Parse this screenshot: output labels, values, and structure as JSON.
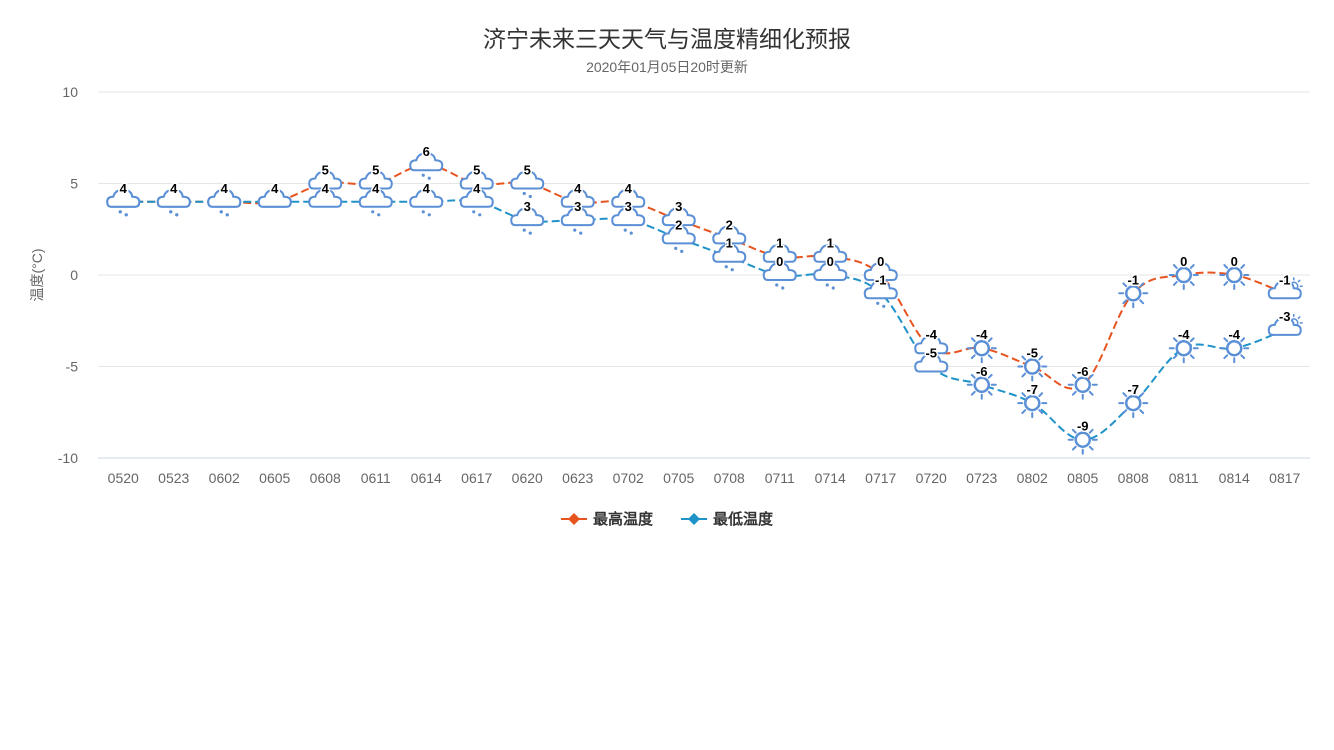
{
  "title": "济宁未来三天天气与温度精细化预报",
  "subtitle": "2020年01月05日20时更新",
  "chart_data": {
    "type": "line",
    "title": "济宁未来三天天气与温度精细化预报",
    "subtitle": "2020年01月05日20时更新",
    "ylabel": "温度(°C)",
    "xlabel": "",
    "ylim": [
      -10,
      10
    ],
    "yticks": [
      10,
      5,
      0,
      -5,
      -10
    ],
    "grid": true,
    "legend": "bottom-center",
    "categories": [
      "0520",
      "0523",
      "0602",
      "0605",
      "0608",
      "0611",
      "0614",
      "0617",
      "0620",
      "0623",
      "0702",
      "0705",
      "0708",
      "0711",
      "0714",
      "0717",
      "0720",
      "0723",
      "0802",
      "0805",
      "0808",
      "0811",
      "0814",
      "0817"
    ],
    "series": [
      {
        "name": "最高温度",
        "color": "#e8541f",
        "marker": "diamond",
        "values": [
          4,
          4,
          4,
          4,
          5,
          5,
          6,
          5,
          5,
          4,
          4,
          3,
          2,
          1,
          1,
          0,
          -4,
          -4,
          -5,
          -6,
          -1,
          0,
          0,
          -1
        ]
      },
      {
        "name": "最低温度",
        "color": "#1f93c8",
        "marker": "diamond",
        "values": [
          4,
          4,
          4,
          4,
          4,
          4,
          4,
          4,
          3,
          3,
          3,
          2,
          1,
          0,
          0,
          -1,
          -5,
          -6,
          -7,
          -9,
          -7,
          -4,
          -4,
          -3
        ]
      }
    ],
    "weather_icons": {
      "max": [
        "light-snow-icon",
        "light-snow-icon",
        "light-snow-icon",
        "cloudy-icon",
        "cloudy-icon",
        "light-snow-icon",
        "light-snow-icon",
        "light-snow-icon",
        "light-snow-icon",
        "light-snow-icon",
        "light-snow-icon",
        "light-snow-icon",
        "light-snow-icon",
        "light-snow-icon",
        "light-snow-icon",
        "light-snow-icon",
        "cloudy-icon",
        "sunny-icon",
        "sunny-icon",
        "sunny-icon",
        "sunny-icon",
        "sunny-icon",
        "sunny-icon",
        "partly-cloudy-icon"
      ],
      "min": [
        "light-snow-icon",
        "light-snow-icon",
        "light-snow-icon",
        "cloudy-icon",
        "cloudy-icon",
        "light-snow-icon",
        "light-snow-icon",
        "light-snow-icon",
        "light-snow-icon",
        "light-snow-icon",
        "light-snow-icon",
        "light-snow-icon",
        "light-snow-icon",
        "light-snow-icon",
        "light-snow-icon",
        "light-snow-icon",
        "cloudy-icon",
        "sunny-icon",
        "sunny-icon",
        "sunny-icon",
        "sunny-icon",
        "sunny-icon",
        "sunny-icon",
        "partly-cloudy-icon"
      ]
    }
  },
  "colors": {
    "grid": "#e6e6e6",
    "axis_text": "#666666",
    "icon": "#5b8fd6"
  }
}
